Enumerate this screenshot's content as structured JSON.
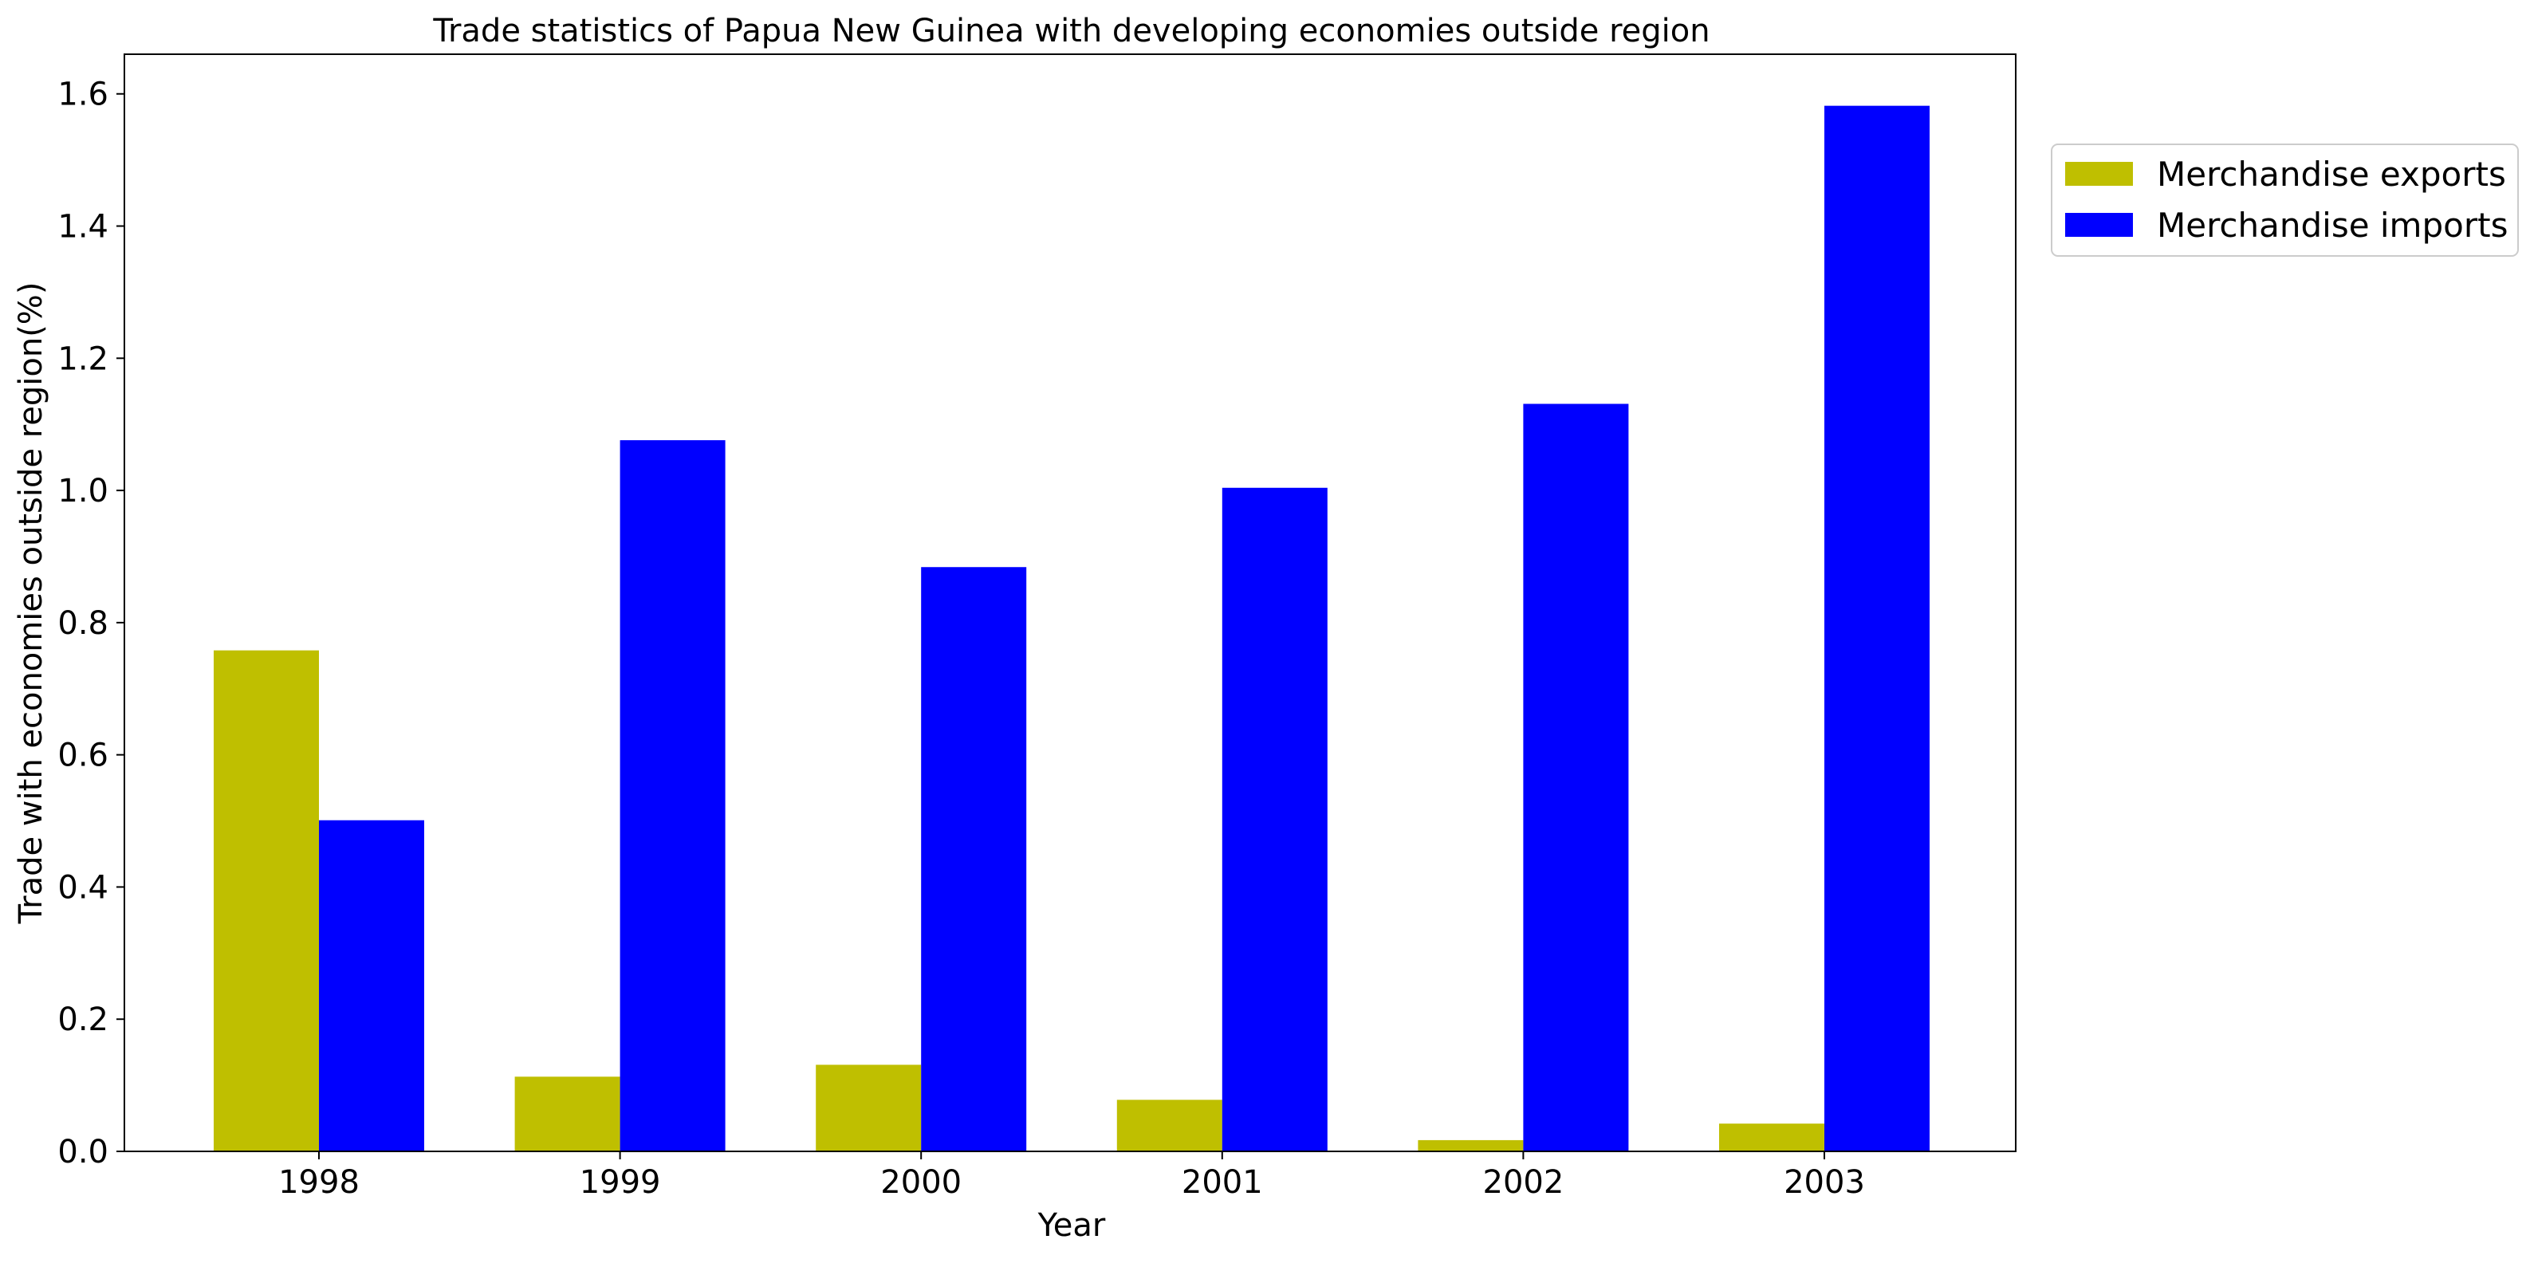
{
  "chart_data": {
    "type": "bar",
    "title": "Trade statistics of Papua New Guinea with developing economies outside region",
    "xlabel": "Year",
    "ylabel": "Trade with economies outside region(%)",
    "categories": [
      "1998",
      "1999",
      "2000",
      "2001",
      "2002",
      "2003"
    ],
    "series": [
      {
        "name": "Merchandise exports",
        "color": "#bfbf00",
        "values": [
          0.758,
          0.113,
          0.131,
          0.078,
          0.017,
          0.042
        ]
      },
      {
        "name": "Merchandise imports",
        "color": "#0000ff",
        "values": [
          0.501,
          1.076,
          0.884,
          1.004,
          1.131,
          1.582
        ]
      }
    ],
    "ylim": [
      0,
      1.66
    ],
    "yticks": [
      "0.0",
      "0.2",
      "0.4",
      "0.6",
      "0.8",
      "1.0",
      "1.2",
      "1.4",
      "1.6"
    ],
    "grid": false,
    "legend_position": "outside-right-top"
  }
}
